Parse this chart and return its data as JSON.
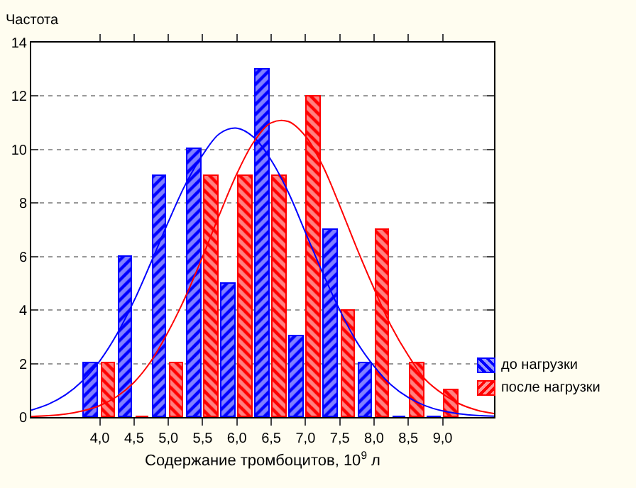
{
  "chart_data": {
    "type": "bar",
    "ylabel": "Частота",
    "xlabel": "Содержание тромбоцитов, 10$^{9}$ л",
    "x": [
      4.0,
      4.5,
      5.0,
      5.5,
      6.0,
      6.5,
      7.0,
      7.5,
      8.0,
      8.5,
      9.0
    ],
    "series": [
      {
        "name": "до нагрузки",
        "color": "#0000ff",
        "values": [
          2,
          6,
          9,
          10,
          5,
          13,
          3,
          7,
          2,
          0,
          0
        ]
      },
      {
        "name": "после нагрузки",
        "color": "#ff0000",
        "values": [
          2,
          0,
          2,
          9,
          9,
          9,
          12,
          4,
          7,
          2,
          1
        ]
      },
      {
        "type": "line",
        "color": "#0000ff",
        "x": [
          3.0,
          3.25,
          3.5,
          3.75,
          4.0,
          4.25,
          4.5,
          4.75,
          5.0,
          5.25,
          5.5,
          5.75,
          6.0,
          6.25,
          6.5,
          6.75,
          7.0,
          7.25,
          7.5,
          7.75,
          8.0,
          8.25,
          8.5,
          8.75,
          9.0,
          9.25,
          9.5,
          9.75
        ],
        "values": [
          0.26,
          0.48,
          0.83,
          1.36,
          2.1,
          3.1,
          4.35,
          5.8,
          7.3,
          8.7,
          9.8,
          10.6,
          10.8,
          10.45,
          9.6,
          8.4,
          6.9,
          5.4,
          4.0,
          2.8,
          1.9,
          1.2,
          0.73,
          0.42,
          0.23,
          0.12,
          0.06,
          0.03
        ]
      },
      {
        "type": "line",
        "color": "#ff0000",
        "x": [
          3.0,
          3.25,
          3.5,
          3.75,
          4.0,
          4.25,
          4.5,
          4.75,
          5.0,
          5.25,
          5.5,
          5.75,
          6.0,
          6.25,
          6.5,
          6.75,
          7.0,
          7.25,
          7.5,
          7.75,
          8.0,
          8.25,
          8.5,
          8.75,
          9.0,
          9.25,
          9.5,
          9.75
        ],
        "values": [
          0.02,
          0.05,
          0.11,
          0.23,
          0.43,
          0.77,
          1.3,
          2.1,
          3.2,
          4.5,
          6.0,
          7.6,
          9.1,
          10.3,
          11.0,
          11.05,
          10.5,
          9.4,
          7.9,
          6.3,
          4.8,
          3.4,
          2.3,
          1.4,
          0.87,
          0.49,
          0.26,
          0.13
        ]
      }
    ],
    "xlim": [
      3.0,
      9.75
    ],
    "xticks": [
      {
        "value": 4.0,
        "label": "4,0"
      },
      {
        "value": 4.5,
        "label": "4,5"
      },
      {
        "value": 5.0,
        "label": "5,0"
      },
      {
        "value": 5.5,
        "label": "5,5"
      },
      {
        "value": 6.0,
        "label": "6,0"
      },
      {
        "value": 6.5,
        "label": "6,5"
      },
      {
        "value": 7.0,
        "label": "7,0"
      },
      {
        "value": 7.5,
        "label": "7,5"
      },
      {
        "value": 8.0,
        "label": "8,0"
      },
      {
        "value": 8.5,
        "label": "8,5"
      },
      {
        "value": 9.0,
        "label": "9,0"
      }
    ],
    "ylim": [
      0,
      14
    ],
    "yticks": [
      0,
      2,
      4,
      6,
      8,
      10,
      12,
      14
    ],
    "grid": "y",
    "legend": "bottom right"
  }
}
